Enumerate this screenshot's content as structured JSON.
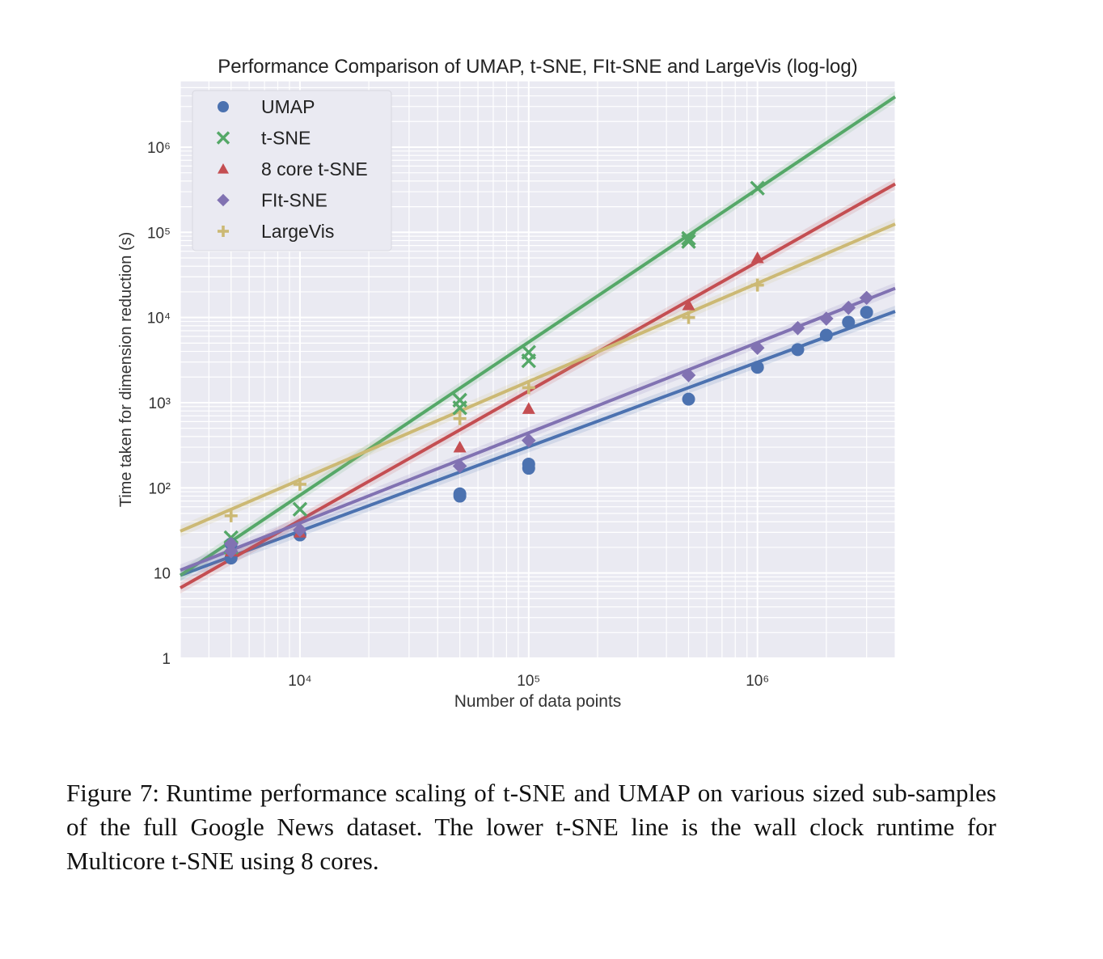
{
  "chart_data": {
    "type": "scatter",
    "title": "Performance Comparison of UMAP, t-SNE, FIt-SNE and LargeVis (log-log)",
    "xlabel": "Number of data points",
    "ylabel": "Time taken for dimension reduction (s)",
    "xscale": "log",
    "yscale": "log",
    "xlim": [
      3000,
      4000000
    ],
    "ylim": [
      1,
      6000000
    ],
    "x_ticks": [
      {
        "value": 10000,
        "label": "10⁴"
      },
      {
        "value": 100000,
        "label": "10⁵"
      },
      {
        "value": 1000000,
        "label": "10⁶"
      }
    ],
    "y_ticks": [
      {
        "value": 1,
        "label": "1"
      },
      {
        "value": 10,
        "label": "10"
      },
      {
        "value": 100,
        "label": "10²"
      },
      {
        "value": 1000,
        "label": "10³"
      },
      {
        "value": 10000,
        "label": "10⁴"
      },
      {
        "value": 100000,
        "label": "10⁵"
      },
      {
        "value": 1000000,
        "label": "10⁶"
      }
    ],
    "grid": true,
    "legend_position": "top-left",
    "series": [
      {
        "name": "UMAP",
        "marker": "circle",
        "color": "#4c72b0",
        "points": [
          [
            5000,
            15
          ],
          [
            5000,
            22
          ],
          [
            10000,
            28
          ],
          [
            50000,
            80
          ],
          [
            50000,
            85
          ],
          [
            100000,
            170
          ],
          [
            100000,
            190
          ],
          [
            500000,
            1100
          ],
          [
            1000000,
            2600
          ],
          [
            1500000,
            4200
          ],
          [
            2000000,
            6200
          ],
          [
            2500000,
            8800
          ],
          [
            3000000,
            11500
          ]
        ],
        "fit": [
          [
            3000,
            9.4
          ],
          [
            4000000,
            11800
          ]
        ]
      },
      {
        "name": "t-SNE",
        "marker": "x",
        "color": "#55a868",
        "points": [
          [
            5000,
            26
          ],
          [
            5000,
            20
          ],
          [
            10000,
            56
          ],
          [
            50000,
            1070
          ],
          [
            50000,
            870
          ],
          [
            100000,
            3900
          ],
          [
            100000,
            3100
          ],
          [
            500000,
            85000
          ],
          [
            500000,
            78000
          ],
          [
            1000000,
            330000
          ]
        ],
        "fit": [
          [
            3000,
            9.4
          ],
          [
            4000000,
            3900000
          ]
        ]
      },
      {
        "name": "8 core t-SNE",
        "marker": "triangle",
        "color": "#c44e52",
        "points": [
          [
            5000,
            18
          ],
          [
            10000,
            30
          ],
          [
            50000,
            300
          ],
          [
            100000,
            850
          ],
          [
            500000,
            14000
          ],
          [
            1000000,
            50000
          ]
        ],
        "fit": [
          [
            3000,
            6.7
          ],
          [
            4000000,
            370000
          ]
        ]
      },
      {
        "name": "FIt-SNE",
        "marker": "diamond",
        "color": "#8172b2",
        "points": [
          [
            5000,
            18
          ],
          [
            5000,
            22
          ],
          [
            10000,
            32
          ],
          [
            50000,
            180
          ],
          [
            100000,
            360
          ],
          [
            500000,
            2100
          ],
          [
            1000000,
            4400
          ],
          [
            1500000,
            7500
          ],
          [
            2000000,
            9700
          ],
          [
            2500000,
            13000
          ],
          [
            3000000,
            17000
          ]
        ],
        "fit": [
          [
            3000,
            10.8
          ],
          [
            4000000,
            22000
          ]
        ]
      },
      {
        "name": "LargeVis",
        "marker": "plus",
        "color": "#ccb974",
        "points": [
          [
            5000,
            47
          ],
          [
            10000,
            110
          ],
          [
            50000,
            650
          ],
          [
            100000,
            1500
          ],
          [
            500000,
            10000
          ],
          [
            1000000,
            24000
          ]
        ],
        "fit": [
          [
            3000,
            31
          ],
          [
            4000000,
            125000
          ]
        ]
      }
    ]
  },
  "caption": {
    "label": "Figure 7:",
    "text": "Runtime performance scaling of t-SNE and UMAP on various sized sub-samples of the full Google News dataset. The lower t-SNE line is the wall clock runtime for Multicore t-SNE using 8 cores."
  }
}
